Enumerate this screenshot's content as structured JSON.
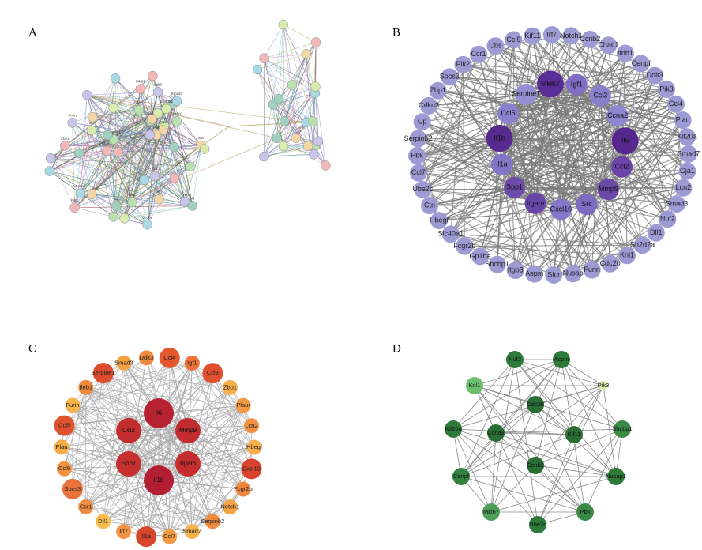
{
  "panels": [
    {
      "label": "A",
      "nodes": [
        {
          "label": "Smad2a"
        },
        {
          "label": "Gp1ba"
        },
        {
          "label": "Igf1"
        },
        {
          "label": "Pik3"
        },
        {
          "label": "Pik2"
        },
        {
          "label": "Knl1"
        },
        {
          "label": "Ccl3"
        },
        {
          "label": "Cdc20"
        },
        {
          "label": "Ccna2"
        },
        {
          "label": "Aspm"
        },
        {
          "label": "Zbp1"
        },
        {
          "label": "Ccl4"
        },
        {
          "label": "Irf7"
        },
        {
          "label": "Il6"
        },
        {
          "label": "Serpine1"
        },
        {
          "label": "Smad7"
        },
        {
          "label": "Furin"
        },
        {
          "label": "Chac1"
        },
        {
          "label": "Ctn"
        },
        {
          "label": "Slc40a1"
        },
        {
          "label": "Cp"
        },
        {
          "label": "Shcbp1"
        },
        {
          "label": "Dll1"
        },
        {
          "label": "Itgb3"
        },
        {
          "label": "Mki67"
        },
        {
          "label": "Pbk"
        }
      ]
    },
    {
      "label": "B",
      "outer_color": "#9d9bd4",
      "outer": [
        {
          "label": "Kif11"
        },
        {
          "label": "Irf7"
        },
        {
          "label": "Notch1"
        },
        {
          "label": "Ccnb2"
        },
        {
          "label": "Chac1"
        },
        {
          "label": "Ifnb1"
        },
        {
          "label": "Cenpf"
        },
        {
          "label": "Ddit3"
        },
        {
          "label": "Pik3"
        },
        {
          "label": "Ccl4"
        },
        {
          "label": "Plau"
        },
        {
          "label": "Kif20a"
        },
        {
          "label": "Smad7"
        },
        {
          "label": "Gja1"
        },
        {
          "label": "Lcn2"
        },
        {
          "label": "Smad3"
        },
        {
          "label": "Nuf2"
        },
        {
          "label": "Dll1"
        },
        {
          "label": "Sh2d2a"
        },
        {
          "label": "Knl1"
        },
        {
          "label": "Cdc20"
        },
        {
          "label": "Furin"
        },
        {
          "label": "Nusap"
        },
        {
          "label": "Sfcr"
        },
        {
          "label": "Aspm"
        },
        {
          "label": "Itgb3"
        },
        {
          "label": "Shcbp1"
        },
        {
          "label": "Gp1ba"
        },
        {
          "label": "Fcgr2b"
        },
        {
          "label": "Slc40a1"
        },
        {
          "label": "Hbegf"
        },
        {
          "label": "Ctn"
        },
        {
          "label": "Ube2c"
        },
        {
          "label": "Ccl7"
        },
        {
          "label": "Pbk"
        },
        {
          "label": "Serpinb2"
        },
        {
          "label": "Cp"
        },
        {
          "label": "Cdkn3"
        },
        {
          "label": "Zbp1"
        },
        {
          "label": "Socs3"
        },
        {
          "label": "Pik2"
        },
        {
          "label": "Ccr1"
        },
        {
          "label": "Cbs"
        },
        {
          "label": "Ccl9"
        }
      ],
      "inner": [
        {
          "label": "Mki67",
          "color": "#5b2d96"
        },
        {
          "label": "Igf1",
          "color": "#7f6ec4"
        },
        {
          "label": "Ccl3",
          "color": "#8a7fcc"
        },
        {
          "label": "Ccna2",
          "color": "#8e86cf"
        },
        {
          "label": "Il6",
          "color": "#56288f"
        },
        {
          "label": "Ccl2",
          "color": "#6a43a8"
        },
        {
          "label": "Mmp9",
          "color": "#6c47aa"
        },
        {
          "label": "Src",
          "color": "#7d6cc2"
        },
        {
          "label": "Cxcl10",
          "color": "#8476c8"
        },
        {
          "label": "Itgam",
          "color": "#6a45a9"
        },
        {
          "label": "Spp1",
          "color": "#6e4bac"
        },
        {
          "label": "Il1a",
          "color": "#8376c7"
        },
        {
          "label": "Il1b",
          "color": "#572a90"
        },
        {
          "label": "Ccl5",
          "color": "#8a80cd"
        },
        {
          "label": "Serpine1",
          "color": "#958fd2"
        }
      ]
    },
    {
      "label": "C",
      "outer": [
        {
          "label": "Ddit3",
          "color": "#f08a3e"
        },
        {
          "label": "Ccl4",
          "color": "#e4582f"
        },
        {
          "label": "Igf1",
          "color": "#ec7238"
        },
        {
          "label": "Ccl3",
          "color": "#df4f2d"
        },
        {
          "label": "Zbp1",
          "color": "#f7b04a"
        },
        {
          "label": "Plaur",
          "color": "#f39a42"
        },
        {
          "label": "Lcn2",
          "color": "#f19040"
        },
        {
          "label": "Hbegf",
          "color": "#f7ad4a"
        },
        {
          "label": "Cxcl10",
          "color": "#d8432b"
        },
        {
          "label": "Fcgr2b",
          "color": "#ee8640"
        },
        {
          "label": "Notch1",
          "color": "#f5a347"
        },
        {
          "label": "Serpinb2",
          "color": "#ee8a40"
        },
        {
          "label": "Smad7",
          "color": "#f8b44c"
        },
        {
          "label": "Ccl7",
          "color": "#f39b44"
        },
        {
          "label": "Il1a",
          "color": "#d9452b"
        },
        {
          "label": "Irf7",
          "color": "#f29444"
        },
        {
          "label": "Dll1",
          "color": "#f9bc4f"
        },
        {
          "label": "Ccr1",
          "color": "#f08c41"
        },
        {
          "label": "Socs3",
          "color": "#e9723a"
        },
        {
          "label": "Ccl9",
          "color": "#f29342"
        },
        {
          "label": "Plau",
          "color": "#f7ac48"
        },
        {
          "label": "Ccl5",
          "color": "#df522e"
        },
        {
          "label": "Furin",
          "color": "#f8b44b"
        },
        {
          "label": "Ifnb1",
          "color": "#f08a3f"
        },
        {
          "label": "Serpine1",
          "color": "#dc4c2d"
        },
        {
          "label": "Smad3",
          "color": "#f5a245"
        }
      ],
      "inner": [
        {
          "label": "Il6",
          "color": "#b62231"
        },
        {
          "label": "Ccl2",
          "color": "#c32c2f"
        },
        {
          "label": "Mmp9",
          "color": "#c22b2f"
        },
        {
          "label": "Spp1",
          "color": "#c6312f"
        },
        {
          "label": "Itgam",
          "color": "#c42e2f"
        },
        {
          "label": "Il1b",
          "color": "#b21f32"
        }
      ]
    },
    {
      "label": "D",
      "nodes": [
        {
          "label": "Nuf2",
          "color": "#2d7a3a"
        },
        {
          "label": "Aspm",
          "color": "#2d7a3a"
        },
        {
          "label": "Pik3",
          "color": "#d8ecae"
        },
        {
          "label": "Knl1",
          "color": "#6cbf70"
        },
        {
          "label": "Cdc20",
          "color": "#2a6e35"
        },
        {
          "label": "Kif20a",
          "color": "#2d7a3a"
        },
        {
          "label": "Ccna2",
          "color": "#2a6e35"
        },
        {
          "label": "Kif11",
          "color": "#2a6e35"
        },
        {
          "label": "Shcbp1",
          "color": "#3a8a46"
        },
        {
          "label": "Ccnb2",
          "color": "#2a6e35"
        },
        {
          "label": "Cenpf",
          "color": "#338240"
        },
        {
          "label": "Nusap1",
          "color": "#2d7a3a"
        },
        {
          "label": "Mki67",
          "color": "#4fa05a"
        },
        {
          "label": "Pbk",
          "color": "#3a8a46"
        },
        {
          "label": "Ube2c",
          "color": "#2d7a3a"
        }
      ]
    }
  ]
}
